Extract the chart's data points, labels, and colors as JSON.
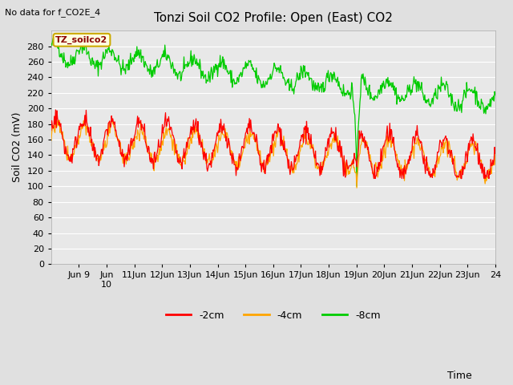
{
  "title": "Tonzi Soil CO2 Profile: Open (East) CO2",
  "subtitle": "No data for f_CO2E_4",
  "ylabel": "Soil CO2 (mV)",
  "legend_entries": [
    "-2cm",
    "-4cm",
    "-8cm"
  ],
  "colors": {
    "2cm": "#ff0000",
    "4cm": "#ffa500",
    "8cm": "#00cc00"
  },
  "ylim": [
    0,
    300
  ],
  "yticks": [
    0,
    20,
    40,
    60,
    80,
    100,
    120,
    140,
    160,
    180,
    200,
    220,
    240,
    260,
    280
  ],
  "bg_color": "#e0e0e0",
  "plot_bg": "#e8e8e8",
  "grid_color": "#ffffff",
  "n_points": 700,
  "xtick_labels": [
    "Jun 9",
    "Jun\n10",
    "11Jun",
    "12Jun",
    "13Jun",
    "14Jun",
    "15Jun",
    "16Jun",
    "17Jun",
    "18Jun",
    "19Jun",
    "20Jun",
    "21Jun",
    "22Jun",
    "23Jun",
    "24"
  ]
}
